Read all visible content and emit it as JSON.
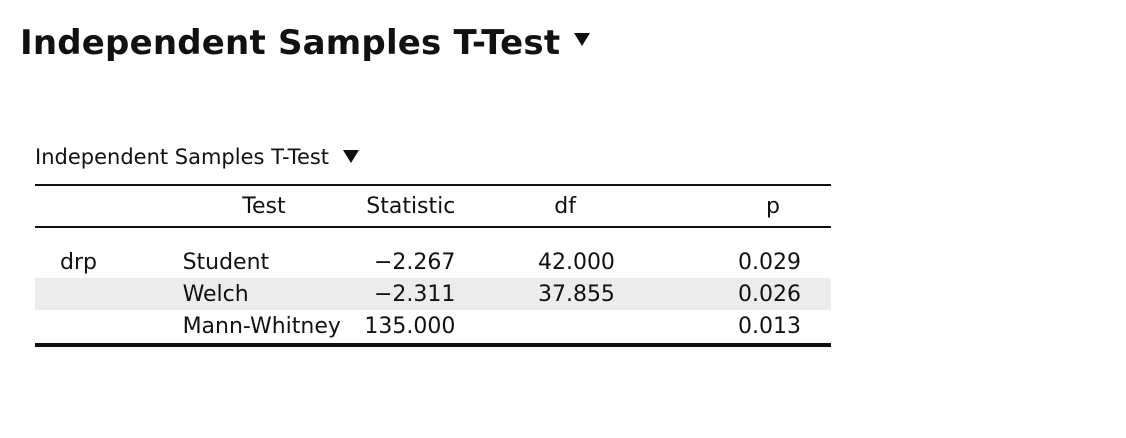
{
  "analysis": {
    "title": "Independent Samples T-Test"
  },
  "table": {
    "title": "Independent Samples T-Test",
    "columns": {
      "var": "",
      "test": "Test",
      "statistic": "Statistic",
      "df": "df",
      "p": "p"
    },
    "rows": [
      {
        "var": "drp",
        "test": "Student",
        "statistic": "−2.267",
        "df": "42.000",
        "p": "0.029"
      },
      {
        "var": "",
        "test": "Welch",
        "statistic": "−2.311",
        "df": "37.855",
        "p": "0.026"
      },
      {
        "var": "",
        "test": "Mann-Whitney",
        "statistic": "135.000",
        "df": "",
        "p": "0.013"
      }
    ]
  }
}
